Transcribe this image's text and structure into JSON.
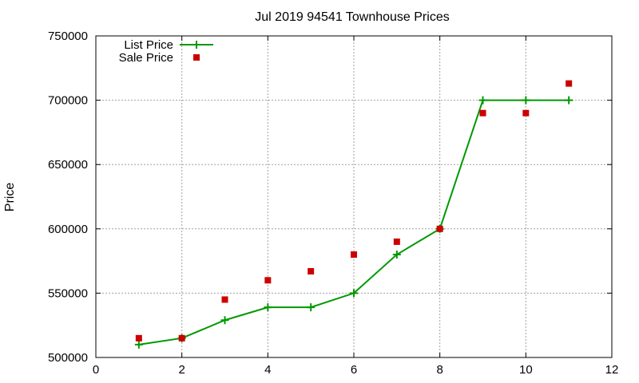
{
  "chart_data": {
    "type": "line",
    "title": "Jul 2019 94541 Townhouse Prices",
    "xlabel": "",
    "ylabel": "Price",
    "xlim": [
      0,
      12
    ],
    "ylim": [
      500000,
      750000
    ],
    "xticks": [
      "0",
      "2",
      "4",
      "6",
      "8",
      "10",
      "12"
    ],
    "yticks": [
      "500000",
      "550000",
      "600000",
      "650000",
      "700000",
      "750000"
    ],
    "grid": true,
    "legend_position": "top-left",
    "series": [
      {
        "name": "List Price",
        "type": "line",
        "color": "#009900",
        "x": [
          1,
          2,
          3,
          4,
          5,
          6,
          7,
          8,
          9,
          10,
          11
        ],
        "values": [
          510000,
          515000,
          529000,
          539000,
          539000,
          550000,
          580000,
          600000,
          700000,
          700000,
          700000
        ]
      },
      {
        "name": "Sale Price",
        "type": "scatter",
        "color": "#cc0000",
        "x": [
          1,
          2,
          3,
          4,
          5,
          6,
          7,
          8,
          9,
          10,
          11
        ],
        "values": [
          515000,
          515000,
          545000,
          560000,
          567000,
          580000,
          590000,
          600000,
          690000,
          690000,
          713000
        ]
      }
    ]
  }
}
